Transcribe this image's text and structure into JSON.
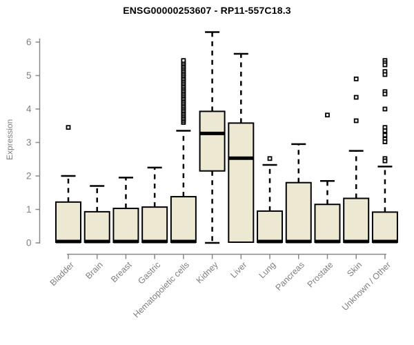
{
  "chart_data": {
    "type": "boxplot",
    "title": "ENSG00000253607 - RP11-557C18.3",
    "xlabel": "",
    "ylabel": "Expression",
    "ylim": [
      0,
      6.4
    ],
    "yticks": [
      0,
      1,
      2,
      3,
      4,
      5,
      6
    ],
    "grid": "off",
    "legend": "none",
    "categories": [
      "Bladder",
      "Brain",
      "Breast",
      "Gastric",
      "Hematopoietic cells",
      "Kidney",
      "Liver",
      "Lung",
      "Pancreas",
      "Prostate",
      "Skin",
      "Unknown / Other"
    ],
    "boxes": [
      {
        "name": "Bladder",
        "whisker_low": 0.02,
        "q1": 0.02,
        "median": 0.04,
        "q3": 1.22,
        "whisker_high": 2.0,
        "outliers": [
          3.45
        ]
      },
      {
        "name": "Brain",
        "whisker_low": 0.02,
        "q1": 0.02,
        "median": 0.04,
        "q3": 0.93,
        "whisker_high": 1.7,
        "outliers": []
      },
      {
        "name": "Breast",
        "whisker_low": 0.02,
        "q1": 0.02,
        "median": 0.04,
        "q3": 1.03,
        "whisker_high": 1.95,
        "outliers": []
      },
      {
        "name": "Gastric",
        "whisker_low": 0.02,
        "q1": 0.02,
        "median": 0.04,
        "q3": 1.07,
        "whisker_high": 2.25,
        "outliers": []
      },
      {
        "name": "Hematopoietic cells",
        "whisker_low": 0.02,
        "q1": 0.02,
        "median": 0.04,
        "q3": 1.38,
        "whisker_high": 3.35,
        "outliers": [
          3.6,
          3.65,
          3.7,
          3.75,
          3.8,
          3.85,
          3.9,
          3.95,
          4.0,
          4.05,
          4.1,
          4.15,
          4.2,
          4.25,
          4.3,
          4.35,
          4.4,
          4.45,
          4.5,
          4.55,
          4.6,
          4.65,
          4.7,
          4.75,
          4.8,
          4.85,
          4.9,
          4.95,
          5.0,
          5.05,
          5.1,
          5.15,
          5.2,
          5.25,
          5.3,
          5.35,
          5.4,
          5.45
        ]
      },
      {
        "name": "Kidney",
        "whisker_low": 0.0,
        "q1": 2.15,
        "median": 3.27,
        "q3": 3.93,
        "whisker_high": 6.3,
        "outliers": []
      },
      {
        "name": "Liver",
        "whisker_low": 0.02,
        "q1": 0.02,
        "median": 2.53,
        "q3": 3.58,
        "whisker_high": 5.65,
        "outliers": []
      },
      {
        "name": "Lung",
        "whisker_low": 0.02,
        "q1": 0.02,
        "median": 0.04,
        "q3": 0.95,
        "whisker_high": 2.33,
        "outliers": [
          2.52
        ]
      },
      {
        "name": "Pancreas",
        "whisker_low": 0.02,
        "q1": 0.02,
        "median": 0.04,
        "q3": 1.8,
        "whisker_high": 2.95,
        "outliers": []
      },
      {
        "name": "Prostate",
        "whisker_low": 0.02,
        "q1": 0.02,
        "median": 0.04,
        "q3": 1.15,
        "whisker_high": 1.85,
        "outliers": [
          3.82
        ]
      },
      {
        "name": "Skin",
        "whisker_low": 0.02,
        "q1": 0.02,
        "median": 0.04,
        "q3": 1.33,
        "whisker_high": 2.75,
        "outliers": [
          4.9,
          4.35,
          3.65
        ]
      },
      {
        "name": "Unknown / Other",
        "whisker_low": 0.02,
        "q1": 0.02,
        "median": 0.04,
        "q3": 0.92,
        "whisker_high": 2.28,
        "outliers": [
          5.45,
          5.38,
          5.32,
          5.12,
          5.03,
          4.52,
          4.45,
          4.0,
          3.45,
          3.35,
          3.22,
          3.1,
          3.02,
          2.52,
          2.45
        ]
      }
    ],
    "colors": {
      "box_fill": "#ede8d1",
      "box_border": "#000000",
      "median": "#000000",
      "whisker": "#000000",
      "axis": "#888888",
      "tick_label": "#7f7f7f",
      "title": "#000000",
      "background": "#ffffff"
    }
  }
}
